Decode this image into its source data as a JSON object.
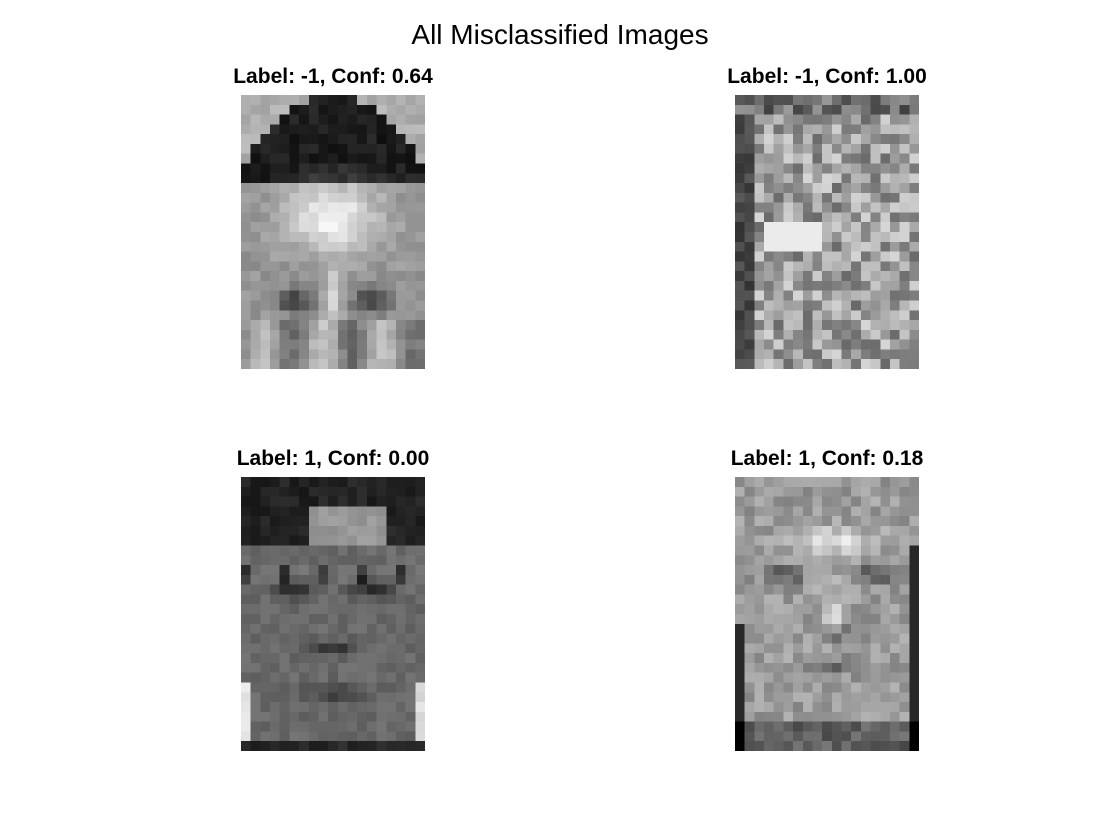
{
  "figure": {
    "title": "All Misclassified Images"
  },
  "panels": [
    {
      "title": "Label: -1, Conf: 0.64",
      "label": "-1",
      "confidence": 0.64,
      "image": "face-with-dark-hair-closeup"
    },
    {
      "title": "Label: -1, Conf: 1.00",
      "label": "-1",
      "confidence": 1.0,
      "image": "noisy-texture-patch"
    },
    {
      "title": "Label: 1, Conf: 0.00",
      "label": "1",
      "confidence": 0.0,
      "image": "face-with-glasses"
    },
    {
      "title": "Label: 1, Conf: 0.18",
      "label": "1",
      "confidence": 0.18,
      "image": "face-bright-forehead"
    }
  ],
  "colors": {
    "background": "#ffffff",
    "text": "#000000"
  }
}
